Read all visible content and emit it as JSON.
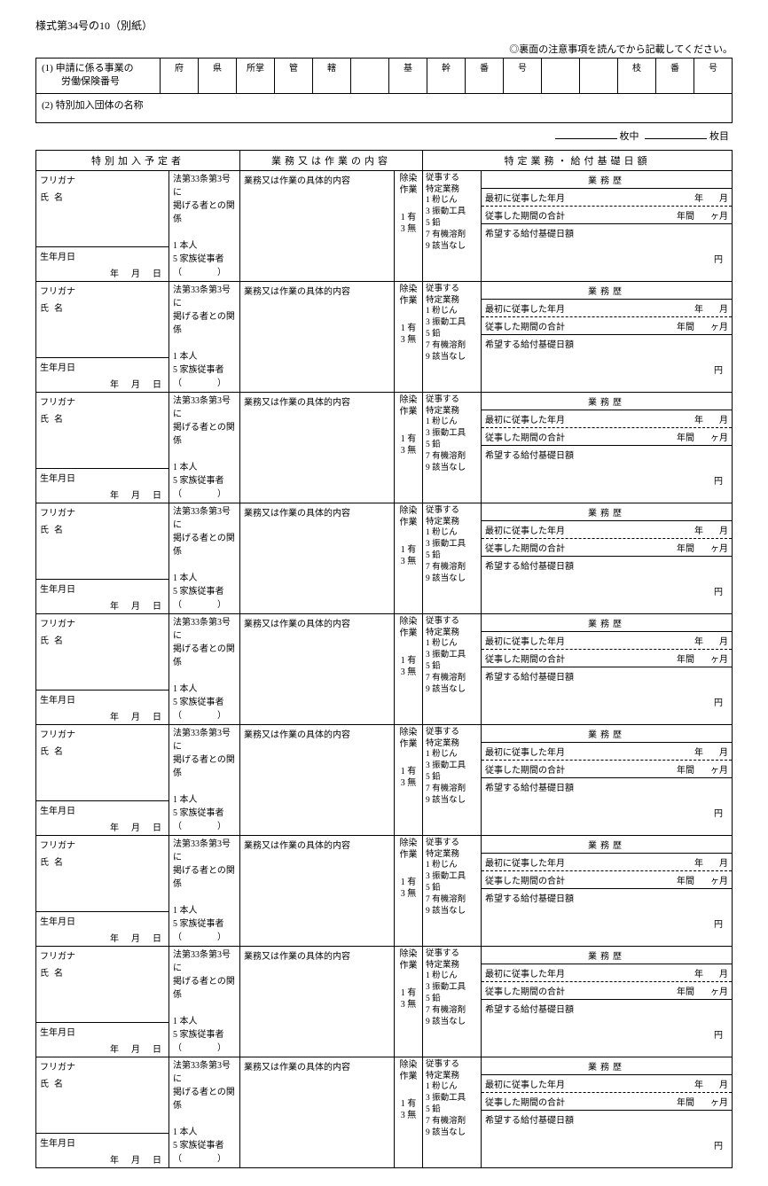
{
  "form_title": "様式第34号の10（別紙）",
  "notice": "◎裏面の注意事項を読んでから記載してください。",
  "section1": {
    "label": "(1) 申請に係る事業の\n　　労働保険番号",
    "headers": [
      "府",
      "県",
      "所掌",
      "管",
      "轄",
      "",
      "基",
      "幹",
      "番",
      "号",
      "",
      "",
      "枝",
      "番",
      "号"
    ]
  },
  "section2": {
    "label": "(2) 特別加入団体の名称"
  },
  "page_info": {
    "mid": "枚中",
    "end": "枚目"
  },
  "main_headers": {
    "a": "特別加入予定者",
    "b": "業務又は作業の内容",
    "c": "特定業務・給付基礎日額"
  },
  "person": {
    "furigana": "フリガナ",
    "name": "氏名",
    "dob": "生年月日",
    "dob_units": {
      "y": "年",
      "m": "月",
      "d": "日"
    }
  },
  "relation": {
    "title": "法第33条第3号に\n掲げる者との関係",
    "opt1": "1 本人",
    "opt5": "5 家族従事者",
    "paren": "（　　　　）"
  },
  "work_label": "業務又は作業の具体的内容",
  "decon": {
    "title": "除染\n作業",
    "opt1": "1 有",
    "opt3": "3 無"
  },
  "biz": {
    "title": "従事する\n特定業務",
    "opts": "1 粉じん\n3 振動工具\n5 鉛\n7 有機溶剤\n9 該当なし"
  },
  "pay": {
    "header": "業務歴",
    "first": "最初に従事した年月",
    "first_units": {
      "y": "年",
      "m": "月"
    },
    "total": "従事した期間の合計",
    "total_units": {
      "y": "年間",
      "m": "ヶ月"
    },
    "desired": "希望する給付基礎日額",
    "yen": "円"
  },
  "row_count": 9
}
